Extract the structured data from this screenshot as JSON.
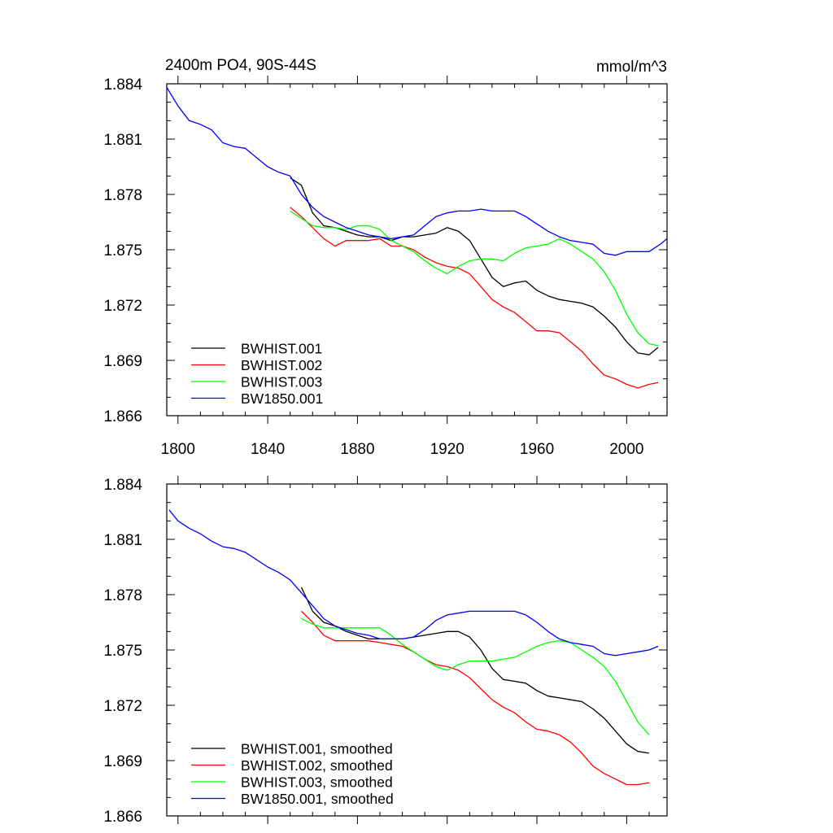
{
  "chart_data": [
    {
      "type": "line",
      "title": "2400m PO4, 90S-44S",
      "units": "mmol/m^3",
      "xlim": [
        1795,
        2018
      ],
      "ylim": [
        1.866,
        1.884
      ],
      "xticks": [
        1800,
        1840,
        1880,
        1920,
        1960,
        2000
      ],
      "xtick_labels": [
        "1800",
        "1840",
        "1880",
        "1920",
        "1960",
        "2000"
      ],
      "yticks": [
        1.866,
        1.869,
        1.872,
        1.875,
        1.878,
        1.881,
        1.884
      ],
      "ytick_labels": [
        "1.866",
        "1.869",
        "1.872",
        "1.875",
        "1.878",
        "1.881",
        "1.884"
      ],
      "show_xtick_labels": true,
      "legend_position": "bottom-left",
      "series": [
        {
          "name": "BWHIST.001",
          "color": "#000000",
          "x": [
            1850,
            1855,
            1860,
            1865,
            1870,
            1875,
            1880,
            1885,
            1890,
            1895,
            1900,
            1905,
            1910,
            1915,
            1920,
            1925,
            1930,
            1935,
            1940,
            1945,
            1950,
            1955,
            1960,
            1965,
            1970,
            1975,
            1980,
            1985,
            1990,
            1995,
            2000,
            2005,
            2010,
            2014
          ],
          "y": [
            1.8789,
            1.8785,
            1.877,
            1.8763,
            1.8762,
            1.876,
            1.8758,
            1.8757,
            1.8757,
            1.8755,
            1.8757,
            1.8757,
            1.8758,
            1.8759,
            1.8762,
            1.876,
            1.8755,
            1.8745,
            1.8735,
            1.873,
            1.8732,
            1.8733,
            1.8728,
            1.8725,
            1.8723,
            1.8722,
            1.8721,
            1.8719,
            1.8714,
            1.8708,
            1.87,
            1.8694,
            1.8693,
            1.8697
          ]
        },
        {
          "name": "BWHIST.002",
          "color": "#ff0000",
          "x": [
            1850,
            1855,
            1860,
            1865,
            1870,
            1875,
            1880,
            1885,
            1890,
            1895,
            1900,
            1905,
            1910,
            1915,
            1920,
            1925,
            1930,
            1935,
            1940,
            1945,
            1950,
            1955,
            1960,
            1965,
            1970,
            1975,
            1980,
            1985,
            1990,
            1995,
            2000,
            2005,
            2010,
            2014
          ],
          "y": [
            1.8773,
            1.8768,
            1.8762,
            1.8756,
            1.8752,
            1.8755,
            1.8755,
            1.8755,
            1.8756,
            1.8752,
            1.8752,
            1.875,
            1.8746,
            1.8743,
            1.8741,
            1.874,
            1.8737,
            1.873,
            1.8723,
            1.8719,
            1.8716,
            1.8711,
            1.8706,
            1.8706,
            1.8705,
            1.87,
            1.8695,
            1.8688,
            1.8682,
            1.868,
            1.8677,
            1.8675,
            1.8677,
            1.8678
          ]
        },
        {
          "name": "BWHIST.003",
          "color": "#00ff00",
          "x": [
            1850,
            1855,
            1860,
            1865,
            1870,
            1875,
            1880,
            1885,
            1890,
            1895,
            1900,
            1905,
            1910,
            1915,
            1920,
            1925,
            1930,
            1935,
            1940,
            1945,
            1950,
            1955,
            1960,
            1965,
            1970,
            1975,
            1980,
            1985,
            1990,
            1995,
            2000,
            2005,
            2010,
            2014
          ],
          "y": [
            1.8771,
            1.8767,
            1.8763,
            1.8762,
            1.8762,
            1.8761,
            1.8763,
            1.8763,
            1.8761,
            1.8755,
            1.8752,
            1.8749,
            1.8744,
            1.874,
            1.8737,
            1.8741,
            1.8744,
            1.8745,
            1.8745,
            1.8744,
            1.8748,
            1.8751,
            1.8752,
            1.8753,
            1.8756,
            1.8753,
            1.8749,
            1.8745,
            1.8738,
            1.8728,
            1.8715,
            1.8705,
            1.8699,
            1.8698
          ]
        },
        {
          "name": "BW1850.001",
          "color": "#0000ff",
          "x": [
            1795,
            1800,
            1805,
            1810,
            1815,
            1820,
            1825,
            1830,
            1835,
            1840,
            1845,
            1850,
            1855,
            1860,
            1865,
            1870,
            1875,
            1880,
            1885,
            1890,
            1895,
            1900,
            1905,
            1910,
            1915,
            1920,
            1925,
            1930,
            1935,
            1940,
            1945,
            1950,
            1955,
            1960,
            1965,
            1970,
            1975,
            1980,
            1985,
            1990,
            1995,
            2000,
            2005,
            2010,
            2015,
            2018
          ],
          "y": [
            1.8838,
            1.8828,
            1.882,
            1.8818,
            1.8815,
            1.8808,
            1.8806,
            1.8805,
            1.88,
            1.8795,
            1.8792,
            1.879,
            1.878,
            1.8773,
            1.8768,
            1.8765,
            1.8762,
            1.876,
            1.8758,
            1.8757,
            1.8756,
            1.8757,
            1.8758,
            1.8763,
            1.8768,
            1.877,
            1.8771,
            1.8771,
            1.8772,
            1.8771,
            1.8771,
            1.8771,
            1.8768,
            1.8764,
            1.876,
            1.8757,
            1.8755,
            1.8754,
            1.8753,
            1.8748,
            1.8747,
            1.8749,
            1.8749,
            1.8749,
            1.8753,
            1.8756
          ]
        }
      ]
    },
    {
      "type": "line",
      "xlim": [
        1795,
        2018
      ],
      "ylim": [
        1.866,
        1.884
      ],
      "xticks": [
        1800,
        1840,
        1880,
        1920,
        1960,
        2000
      ],
      "xtick_labels": [],
      "yticks": [
        1.866,
        1.869,
        1.872,
        1.875,
        1.878,
        1.881,
        1.884
      ],
      "ytick_labels": [
        "1.866",
        "1.869",
        "1.872",
        "1.875",
        "1.878",
        "1.881",
        "1.884"
      ],
      "show_xtick_labels": false,
      "legend_position": "bottom-left",
      "series": [
        {
          "name": "BWHIST.001, smoothed",
          "color": "#000000",
          "x": [
            1855,
            1860,
            1865,
            1870,
            1875,
            1880,
            1885,
            1890,
            1895,
            1900,
            1905,
            1910,
            1915,
            1920,
            1925,
            1930,
            1935,
            1940,
            1945,
            1950,
            1955,
            1960,
            1965,
            1970,
            1975,
            1980,
            1985,
            1990,
            1995,
            2000,
            2005,
            2010
          ],
          "y": [
            1.8784,
            1.8771,
            1.8765,
            1.8763,
            1.876,
            1.8758,
            1.8756,
            1.8756,
            1.8756,
            1.8756,
            1.8757,
            1.8758,
            1.8759,
            1.876,
            1.876,
            1.8757,
            1.875,
            1.874,
            1.8734,
            1.8733,
            1.8732,
            1.8728,
            1.8725,
            1.8724,
            1.8723,
            1.8722,
            1.8718,
            1.8713,
            1.8706,
            1.8699,
            1.8695,
            1.8694
          ]
        },
        {
          "name": "BWHIST.002, smoothed",
          "color": "#ff0000",
          "x": [
            1855,
            1860,
            1865,
            1870,
            1875,
            1880,
            1885,
            1890,
            1895,
            1900,
            1905,
            1910,
            1915,
            1920,
            1925,
            1930,
            1935,
            1940,
            1945,
            1950,
            1955,
            1960,
            1965,
            1970,
            1975,
            1980,
            1985,
            1990,
            1995,
            2000,
            2005,
            2010
          ],
          "y": [
            1.8771,
            1.8765,
            1.8758,
            1.8755,
            1.8755,
            1.8755,
            1.8755,
            1.8754,
            1.8753,
            1.8752,
            1.8749,
            1.8745,
            1.8742,
            1.8741,
            1.8739,
            1.8735,
            1.8729,
            1.8723,
            1.8719,
            1.8716,
            1.8711,
            1.8707,
            1.8706,
            1.8704,
            1.87,
            1.8694,
            1.8687,
            1.8683,
            1.868,
            1.8677,
            1.8677,
            1.8678
          ]
        },
        {
          "name": "BWHIST.003, smoothed",
          "color": "#00ff00",
          "x": [
            1855,
            1860,
            1865,
            1870,
            1875,
            1880,
            1885,
            1890,
            1895,
            1900,
            1905,
            1910,
            1915,
            1920,
            1925,
            1930,
            1935,
            1940,
            1945,
            1950,
            1955,
            1960,
            1965,
            1970,
            1975,
            1980,
            1985,
            1990,
            1995,
            2000,
            2005,
            2010
          ],
          "y": [
            1.8767,
            1.8764,
            1.8762,
            1.8762,
            1.8762,
            1.8762,
            1.8762,
            1.8762,
            1.8758,
            1.8753,
            1.8749,
            1.8745,
            1.8741,
            1.8739,
            1.8742,
            1.8744,
            1.8744,
            1.8744,
            1.8745,
            1.8746,
            1.8749,
            1.8752,
            1.8754,
            1.8755,
            1.8754,
            1.875,
            1.8746,
            1.8741,
            1.8733,
            1.8722,
            1.8711,
            1.8704
          ]
        },
        {
          "name": "BW1850.001, smoothed",
          "color": "#0000ff",
          "x": [
            1796,
            1800,
            1805,
            1810,
            1815,
            1820,
            1825,
            1830,
            1835,
            1840,
            1845,
            1850,
            1855,
            1860,
            1865,
            1870,
            1875,
            1880,
            1885,
            1890,
            1895,
            1900,
            1905,
            1910,
            1915,
            1920,
            1925,
            1930,
            1935,
            1940,
            1945,
            1950,
            1955,
            1960,
            1965,
            1970,
            1975,
            1980,
            1985,
            1990,
            1995,
            2000,
            2005,
            2010,
            2014
          ],
          "y": [
            1.8826,
            1.882,
            1.8816,
            1.8813,
            1.8809,
            1.8806,
            1.8805,
            1.8803,
            1.8799,
            1.8795,
            1.8792,
            1.8788,
            1.8781,
            1.8774,
            1.8767,
            1.8763,
            1.8761,
            1.8759,
            1.8758,
            1.8756,
            1.8756,
            1.8756,
            1.8757,
            1.8761,
            1.8766,
            1.8769,
            1.877,
            1.8771,
            1.8771,
            1.8771,
            1.8771,
            1.8771,
            1.8769,
            1.8765,
            1.876,
            1.8756,
            1.8754,
            1.8753,
            1.8752,
            1.8748,
            1.8747,
            1.8748,
            1.8749,
            1.875,
            1.8752
          ]
        }
      ]
    }
  ]
}
